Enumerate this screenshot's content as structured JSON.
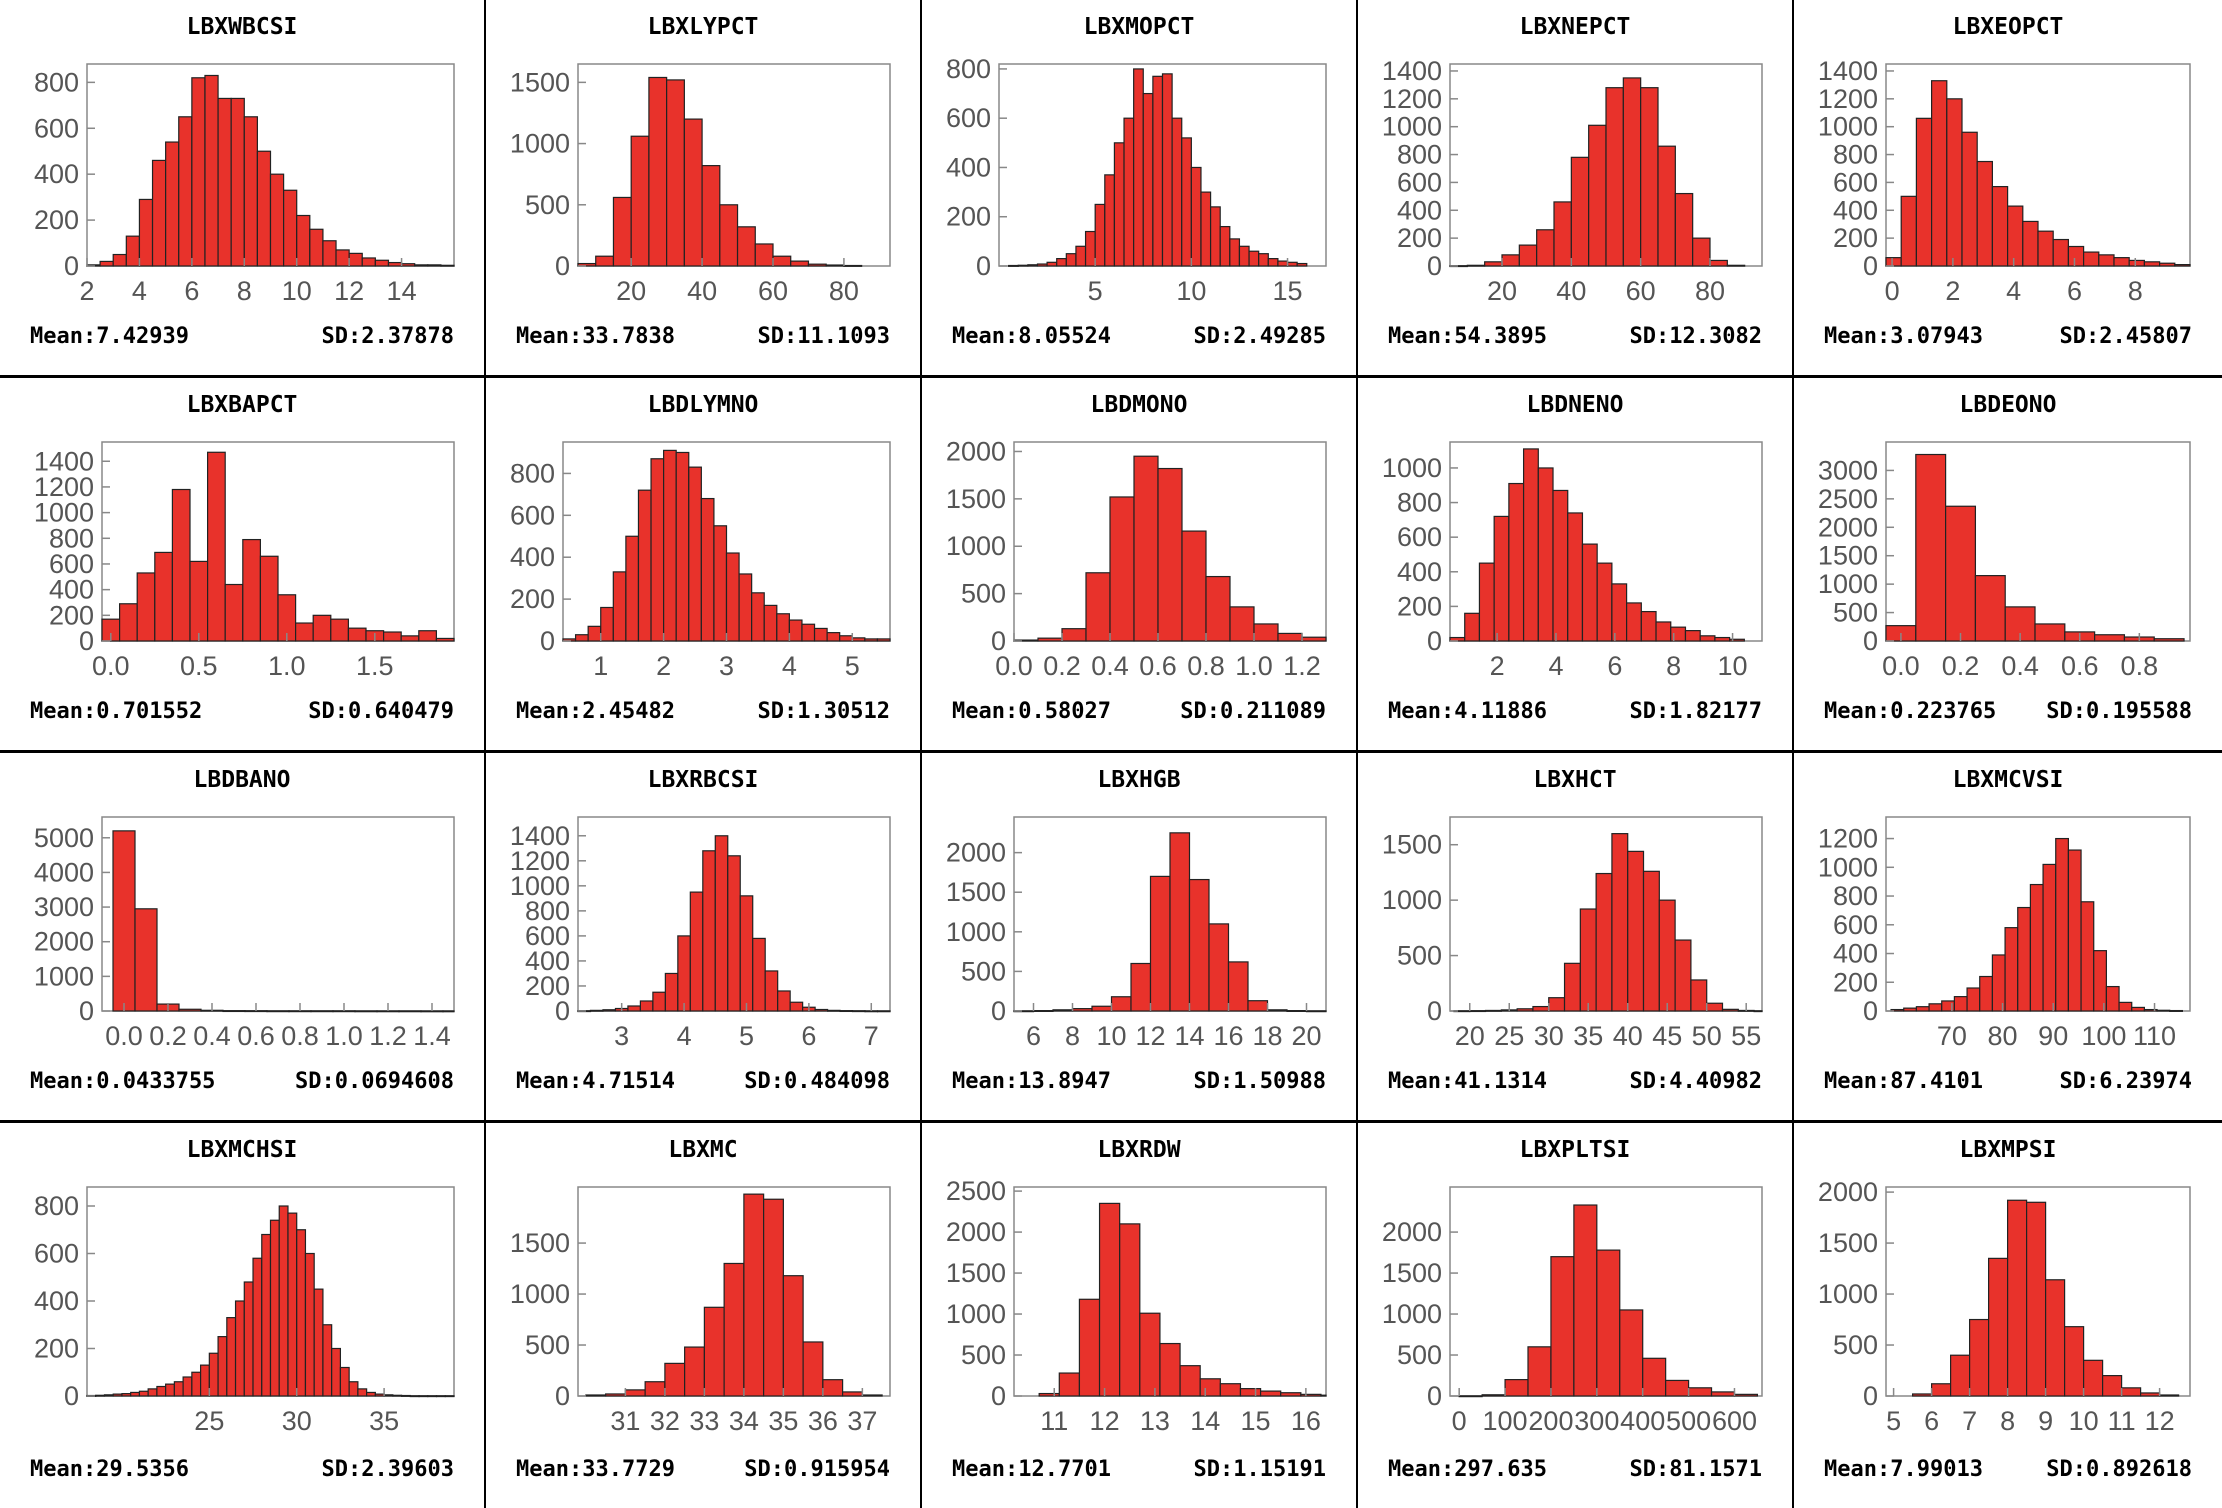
{
  "colors": {
    "bar": "#e8322b",
    "bar_edge": "#222222",
    "frame": "#888888",
    "tick_text": "#555555"
  },
  "chart_data": [
    {
      "type": "bar",
      "title": "LBXWBCSI",
      "mean_label": "Mean:7.42939",
      "sd_label": "SD:2.37878",
      "xlim": [
        2,
        16
      ],
      "ylim": [
        0,
        880
      ],
      "xticks": [
        2,
        4,
        6,
        8,
        10,
        12,
        14
      ],
      "yticks": [
        0,
        200,
        400,
        600,
        800
      ],
      "bins": {
        "start": 2,
        "width": 0.5
      },
      "values": [
        5,
        20,
        50,
        130,
        290,
        460,
        540,
        650,
        820,
        830,
        730,
        730,
        650,
        500,
        400,
        330,
        220,
        160,
        110,
        70,
        55,
        35,
        25,
        15,
        10,
        5,
        5,
        3
      ]
    },
    {
      "type": "bar",
      "title": "LBXLYPCT",
      "mean_label": "Mean:33.7838",
      "sd_label": "SD:11.1093",
      "xlim": [
        5,
        93
      ],
      "ylim": [
        0,
        1650
      ],
      "xticks": [
        20,
        40,
        60,
        80
      ],
      "yticks": [
        0,
        500,
        1000,
        1500
      ],
      "bins": {
        "start": 5,
        "width": 5
      },
      "values": [
        20,
        80,
        560,
        1060,
        1540,
        1520,
        1200,
        820,
        500,
        320,
        180,
        80,
        40,
        15,
        8,
        4
      ]
    },
    {
      "type": "bar",
      "title": "LBXMOPCT",
      "mean_label": "Mean:8.05524",
      "sd_label": "SD:2.49285",
      "xlim": [
        0,
        17
      ],
      "ylim": [
        0,
        820
      ],
      "xticks": [
        5,
        10,
        15
      ],
      "yticks": [
        0,
        200,
        400,
        600,
        800
      ],
      "bins": {
        "start": 0.5,
        "width": 0.5
      },
      "values": [
        2,
        3,
        5,
        8,
        15,
        30,
        50,
        80,
        140,
        250,
        370,
        500,
        600,
        800,
        700,
        770,
        780,
        600,
        520,
        400,
        300,
        240,
        160,
        110,
        80,
        60,
        50,
        30,
        20,
        15,
        10
      ]
    },
    {
      "type": "bar",
      "title": "LBXNEPCT",
      "mean_label": "Mean:54.3895",
      "sd_label": "SD:12.3082",
      "xlim": [
        5,
        95
      ],
      "ylim": [
        0,
        1450
      ],
      "xticks": [
        20,
        40,
        60,
        80
      ],
      "yticks": [
        0,
        200,
        400,
        600,
        800,
        1000,
        1200,
        1400
      ],
      "bins": {
        "start": 5,
        "width": 5
      },
      "values": [
        2,
        5,
        30,
        80,
        150,
        260,
        460,
        780,
        1010,
        1280,
        1350,
        1280,
        860,
        520,
        200,
        40,
        5
      ]
    },
    {
      "type": "bar",
      "title": "LBXEOPCT",
      "mean_label": "Mean:3.07943",
      "sd_label": "SD:2.45807",
      "xlim": [
        -0.2,
        9.8
      ],
      "ylim": [
        0,
        1450
      ],
      "xticks": [
        0,
        2,
        4,
        6,
        8
      ],
      "yticks": [
        0,
        200,
        400,
        600,
        800,
        1000,
        1200,
        1400
      ],
      "bins": {
        "start": -0.2,
        "width": 0.5
      },
      "values": [
        60,
        500,
        1060,
        1330,
        1200,
        960,
        750,
        570,
        430,
        320,
        250,
        190,
        140,
        100,
        80,
        60,
        40,
        30,
        20,
        10
      ]
    },
    {
      "type": "bar",
      "title": "LBXBAPCT",
      "mean_label": "Mean:0.701552",
      "sd_label": "SD:0.640479",
      "xlim": [
        -0.05,
        1.95
      ],
      "ylim": [
        0,
        1550
      ],
      "xticks": [
        0.0,
        0.5,
        1.0,
        1.5
      ],
      "yticks": [
        0,
        200,
        400,
        600,
        800,
        1000,
        1200,
        1400
      ],
      "bins": {
        "start": -0.05,
        "width": 0.1
      },
      "values": [
        170,
        290,
        530,
        690,
        1180,
        620,
        1470,
        440,
        790,
        660,
        360,
        140,
        200,
        170,
        100,
        80,
        70,
        40,
        80,
        20
      ]
    },
    {
      "type": "bar",
      "title": "LBDLYMNO",
      "mean_label": "Mean:2.45482",
      "sd_label": "SD:1.30512",
      "xlim": [
        0.4,
        5.6
      ],
      "ylim": [
        0,
        950
      ],
      "xticks": [
        1,
        2,
        3,
        4,
        5
      ],
      "yticks": [
        0,
        200,
        400,
        600,
        800
      ],
      "bins": {
        "start": 0.4,
        "width": 0.2
      },
      "values": [
        10,
        30,
        70,
        160,
        330,
        500,
        720,
        870,
        910,
        900,
        830,
        680,
        550,
        420,
        320,
        230,
        170,
        130,
        100,
        80,
        60,
        40,
        25,
        15,
        10,
        10
      ]
    },
    {
      "type": "bar",
      "title": "LBDMONO",
      "mean_label": "Mean:0.58027",
      "sd_label": "SD:0.211089",
      "xlim": [
        0,
        1.3
      ],
      "ylim": [
        0,
        2100
      ],
      "xticks": [
        0.0,
        0.2,
        0.4,
        0.6,
        0.8,
        1.0,
        1.2
      ],
      "yticks": [
        0,
        500,
        1000,
        1500,
        2000
      ],
      "bins": {
        "start": 0,
        "width": 0.1
      },
      "values": [
        10,
        30,
        130,
        720,
        1520,
        1950,
        1820,
        1160,
        680,
        360,
        180,
        80,
        40
      ]
    },
    {
      "type": "bar",
      "title": "LBDNENO",
      "mean_label": "Mean:4.11886",
      "sd_label": "SD:1.82177",
      "xlim": [
        0.4,
        11
      ],
      "ylim": [
        0,
        1150
      ],
      "xticks": [
        2,
        4,
        6,
        8,
        10
      ],
      "yticks": [
        0,
        200,
        400,
        600,
        800,
        1000
      ],
      "bins": {
        "start": 0.4,
        "width": 0.5
      },
      "values": [
        20,
        160,
        450,
        720,
        910,
        1110,
        1000,
        870,
        740,
        560,
        450,
        330,
        220,
        170,
        110,
        80,
        60,
        30,
        20,
        10
      ]
    },
    {
      "type": "bar",
      "title": "LBDEONO",
      "mean_label": "Mean:0.223765",
      "sd_label": "SD:0.195588",
      "xlim": [
        -0.05,
        0.97
      ],
      "ylim": [
        0,
        3500
      ],
      "xticks": [
        0.0,
        0.2,
        0.4,
        0.6,
        0.8
      ],
      "yticks": [
        0,
        500,
        1000,
        1500,
        2000,
        2500,
        3000
      ],
      "bins": {
        "start": -0.05,
        "width": 0.1
      },
      "values": [
        270,
        3280,
        2370,
        1150,
        600,
        300,
        160,
        110,
        70,
        40
      ]
    },
    {
      "type": "bar",
      "title": "LBDBANO",
      "mean_label": "Mean:0.0433755",
      "sd_label": "SD:0.0694608",
      "xlim": [
        -0.1,
        1.5
      ],
      "ylim": [
        0,
        5600
      ],
      "xticks": [
        0.0,
        0.2,
        0.4,
        0.6,
        0.8,
        1.0,
        1.2,
        1.4
      ],
      "ytick_labels_note": "",
      "xtick_labels": [
        "0.0",
        "0.2",
        "0.4",
        "0.6",
        "0.8",
        "1.0",
        "1.2",
        "1.4"
      ],
      "yticks": [
        0,
        1000,
        2000,
        3000,
        4000,
        5000
      ],
      "bins": {
        "start": -0.05,
        "width": 0.1
      },
      "values": [
        5200,
        2950,
        200,
        50,
        20,
        10,
        8,
        5,
        5,
        5,
        5,
        3,
        3,
        3,
        2,
        2
      ]
    },
    {
      "type": "bar",
      "title": "LBXRBCSI",
      "mean_label": "Mean:4.71514",
      "sd_label": "SD:0.484098",
      "xlim": [
        2.3,
        7.3
      ],
      "ylim": [
        0,
        1550
      ],
      "xticks": [
        3,
        4,
        5,
        6,
        7
      ],
      "yticks": [
        0,
        200,
        400,
        600,
        800,
        1000,
        1200,
        1400
      ],
      "bins": {
        "start": 2.3,
        "width": 0.2
      },
      "values": [
        2,
        5,
        10,
        20,
        40,
        80,
        150,
        300,
        600,
        950,
        1280,
        1400,
        1240,
        920,
        580,
        320,
        160,
        70,
        30,
        12,
        5,
        3,
        2,
        1,
        1
      ]
    },
    {
      "type": "bar",
      "title": "LBXHGB",
      "mean_label": "Mean:13.8947",
      "sd_label": "SD:1.50988",
      "xlim": [
        5,
        21
      ],
      "ylim": [
        0,
        2450
      ],
      "xticks": [
        6,
        8,
        10,
        12,
        14,
        16,
        18,
        20
      ],
      "yticks": [
        0,
        500,
        1000,
        1500,
        2000
      ],
      "bins": {
        "start": 5,
        "width": 1
      },
      "values": [
        2,
        5,
        15,
        30,
        60,
        180,
        600,
        1700,
        2250,
        1660,
        1100,
        620,
        130,
        15,
        5,
        2
      ]
    },
    {
      "type": "bar",
      "title": "LBXHCT",
      "mean_label": "Mean:41.1314",
      "sd_label": "SD:4.40982",
      "xlim": [
        17.5,
        57
      ],
      "ylim": [
        0,
        1750
      ],
      "xticks": [
        20,
        25,
        30,
        35,
        40,
        45,
        50,
        55
      ],
      "yticks": [
        0,
        500,
        1000,
        1500
      ],
      "bins": {
        "start": 18,
        "width": 2
      },
      "values": [
        2,
        3,
        5,
        10,
        20,
        40,
        120,
        430,
        920,
        1240,
        1600,
        1440,
        1260,
        1000,
        640,
        280,
        70,
        15,
        5,
        2
      ]
    },
    {
      "type": "bar",
      "title": "LBXMCVSI",
      "mean_label": "Mean:87.4101",
      "sd_label": "SD:6.23974",
      "xlim": [
        57,
        117
      ],
      "ylim": [
        0,
        1350
      ],
      "xticks": [
        70,
        80,
        90,
        100,
        110
      ],
      "yticks": [
        0,
        200,
        400,
        600,
        800,
        1000,
        1200
      ],
      "bins": {
        "start": 58,
        "width": 2.5
      },
      "values": [
        10,
        20,
        30,
        50,
        70,
        100,
        160,
        240,
        390,
        580,
        720,
        880,
        1020,
        1200,
        1120,
        760,
        420,
        170,
        60,
        25,
        10,
        5,
        3
      ]
    },
    {
      "type": "bar",
      "title": "LBXMCHSI",
      "mean_label": "Mean:29.5356",
      "sd_label": "SD:2.39603",
      "xlim": [
        18,
        39
      ],
      "ylim": [
        0,
        880
      ],
      "xticks": [
        25,
        30,
        35
      ],
      "yticks": [
        0,
        200,
        400,
        600,
        800
      ],
      "bins": {
        "start": 18,
        "width": 0.5
      },
      "values": [
        2,
        3,
        5,
        8,
        10,
        15,
        20,
        30,
        40,
        50,
        60,
        80,
        100,
        130,
        180,
        250,
        330,
        400,
        480,
        580,
        680,
        740,
        800,
        770,
        700,
        600,
        450,
        300,
        200,
        120,
        60,
        30,
        15,
        8,
        5,
        3,
        2,
        1,
        1,
        1,
        1,
        1
      ]
    },
    {
      "type": "bar",
      "title": "LBXMC",
      "mean_label": "Mean:33.7729",
      "sd_label": "SD:0.915954",
      "xlim": [
        29.8,
        37.7
      ],
      "ylim": [
        0,
        2050
      ],
      "xticks": [
        31,
        32,
        33,
        34,
        35,
        36,
        37
      ],
      "yticks": [
        0,
        500,
        1000,
        1500
      ],
      "bins": {
        "start": 30,
        "width": 0.5
      },
      "values": [
        10,
        20,
        60,
        140,
        320,
        480,
        870,
        1300,
        1980,
        1930,
        1180,
        530,
        160,
        40,
        10
      ]
    },
    {
      "type": "bar",
      "title": "LBXRDW",
      "mean_label": "Mean:12.7701",
      "sd_label": "SD:1.15191",
      "xlim": [
        10.2,
        16.4
      ],
      "ylim": [
        0,
        2550
      ],
      "xticks": [
        11,
        12,
        13,
        14,
        15,
        16
      ],
      "yticks": [
        0,
        500,
        1000,
        1500,
        2000,
        2500
      ],
      "bins": {
        "start": 10.7,
        "width": 0.4
      },
      "values": [
        30,
        280,
        1180,
        2350,
        2100,
        1010,
        640,
        370,
        210,
        150,
        90,
        60,
        40,
        20,
        10
      ]
    },
    {
      "type": "bar",
      "title": "LBXPLTSI",
      "mean_label": "Mean:297.635",
      "sd_label": "SD:81.1571",
      "xlim": [
        -20,
        660
      ],
      "ylim": [
        0,
        2550
      ],
      "xticks": [
        0,
        100,
        200,
        300,
        400,
        500,
        600
      ],
      "yticks": [
        0,
        500,
        1000,
        1500,
        2000
      ],
      "bins": {
        "start": 0,
        "width": 50
      },
      "values": [
        2,
        15,
        200,
        600,
        1700,
        2330,
        1780,
        1050,
        460,
        190,
        100,
        50,
        20
      ]
    },
    {
      "type": "bar",
      "title": "LBXMPSI",
      "mean_label": "Mean:7.99013",
      "sd_label": "SD:0.892618",
      "xlim": [
        4.8,
        12.8
      ],
      "ylim": [
        0,
        2050
      ],
      "xticks": [
        5,
        6,
        7,
        8,
        9,
        10,
        11,
        12
      ],
      "yticks": [
        0,
        500,
        1000,
        1500,
        2000
      ],
      "bins": {
        "start": 5.5,
        "width": 0.5
      },
      "values": [
        20,
        120,
        400,
        750,
        1350,
        1920,
        1900,
        1140,
        680,
        350,
        200,
        80,
        30,
        10
      ]
    }
  ]
}
